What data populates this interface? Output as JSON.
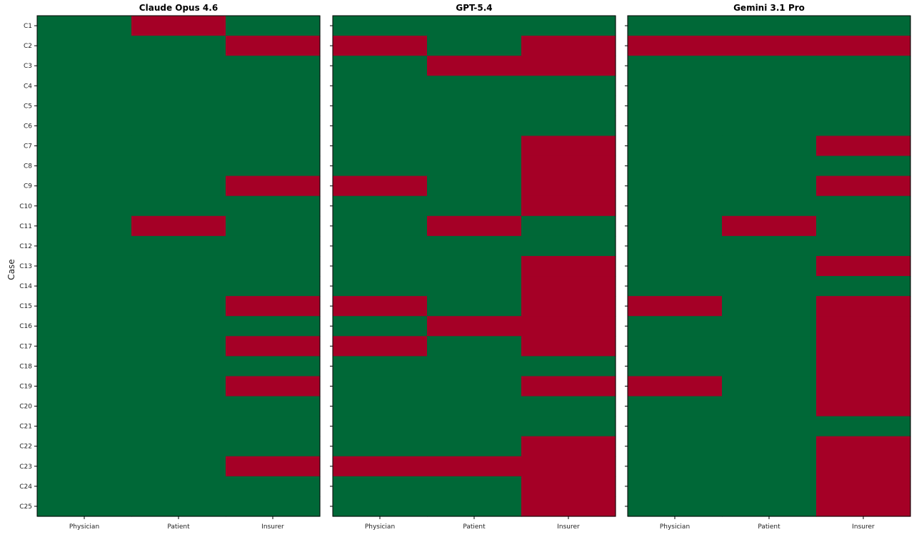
{
  "chart_data": {
    "type": "heatmap",
    "ylabel": "Case",
    "columns": [
      "Physician",
      "Patient",
      "Insurer"
    ],
    "rows": [
      "C1",
      "C2",
      "C3",
      "C4",
      "C5",
      "C6",
      "C7",
      "C8",
      "C9",
      "C10",
      "C11",
      "C12",
      "C13",
      "C14",
      "C15",
      "C16",
      "C17",
      "C18",
      "C19",
      "C20",
      "C21",
      "C22",
      "C23",
      "C24",
      "C25"
    ],
    "colors": {
      "0": "#006837",
      "1": "#a50026"
    },
    "panels": [
      {
        "title": "Claude Opus 4.6",
        "values": [
          [
            0,
            1,
            0
          ],
          [
            0,
            0,
            1
          ],
          [
            0,
            0,
            0
          ],
          [
            0,
            0,
            0
          ],
          [
            0,
            0,
            0
          ],
          [
            0,
            0,
            0
          ],
          [
            0,
            0,
            0
          ],
          [
            0,
            0,
            0
          ],
          [
            0,
            0,
            1
          ],
          [
            0,
            0,
            0
          ],
          [
            0,
            1,
            0
          ],
          [
            0,
            0,
            0
          ],
          [
            0,
            0,
            0
          ],
          [
            0,
            0,
            0
          ],
          [
            0,
            0,
            1
          ],
          [
            0,
            0,
            0
          ],
          [
            0,
            0,
            1
          ],
          [
            0,
            0,
            0
          ],
          [
            0,
            0,
            1
          ],
          [
            0,
            0,
            0
          ],
          [
            0,
            0,
            0
          ],
          [
            0,
            0,
            0
          ],
          [
            0,
            0,
            1
          ],
          [
            0,
            0,
            0
          ],
          [
            0,
            0,
            0
          ]
        ]
      },
      {
        "title": "GPT-5.4",
        "values": [
          [
            0,
            0,
            0
          ],
          [
            1,
            0,
            1
          ],
          [
            0,
            1,
            1
          ],
          [
            0,
            0,
            0
          ],
          [
            0,
            0,
            0
          ],
          [
            0,
            0,
            0
          ],
          [
            0,
            0,
            1
          ],
          [
            0,
            0,
            1
          ],
          [
            1,
            0,
            1
          ],
          [
            0,
            0,
            1
          ],
          [
            0,
            1,
            0
          ],
          [
            0,
            0,
            0
          ],
          [
            0,
            0,
            1
          ],
          [
            0,
            0,
            1
          ],
          [
            1,
            0,
            1
          ],
          [
            0,
            1,
            1
          ],
          [
            1,
            0,
            1
          ],
          [
            0,
            0,
            0
          ],
          [
            0,
            0,
            1
          ],
          [
            0,
            0,
            0
          ],
          [
            0,
            0,
            0
          ],
          [
            0,
            0,
            1
          ],
          [
            1,
            1,
            1
          ],
          [
            0,
            0,
            1
          ],
          [
            0,
            0,
            1
          ]
        ]
      },
      {
        "title": "Gemini 3.1 Pro",
        "values": [
          [
            0,
            0,
            0
          ],
          [
            1,
            1,
            1
          ],
          [
            0,
            0,
            0
          ],
          [
            0,
            0,
            0
          ],
          [
            0,
            0,
            0
          ],
          [
            0,
            0,
            0
          ],
          [
            0,
            0,
            1
          ],
          [
            0,
            0,
            0
          ],
          [
            0,
            0,
            1
          ],
          [
            0,
            0,
            0
          ],
          [
            0,
            1,
            0
          ],
          [
            0,
            0,
            0
          ],
          [
            0,
            0,
            1
          ],
          [
            0,
            0,
            0
          ],
          [
            1,
            0,
            1
          ],
          [
            0,
            0,
            1
          ],
          [
            0,
            0,
            1
          ],
          [
            0,
            0,
            1
          ],
          [
            1,
            0,
            1
          ],
          [
            0,
            0,
            1
          ],
          [
            0,
            0,
            0
          ],
          [
            0,
            0,
            1
          ],
          [
            0,
            0,
            1
          ],
          [
            0,
            0,
            1
          ],
          [
            0,
            0,
            1
          ]
        ]
      }
    ]
  }
}
